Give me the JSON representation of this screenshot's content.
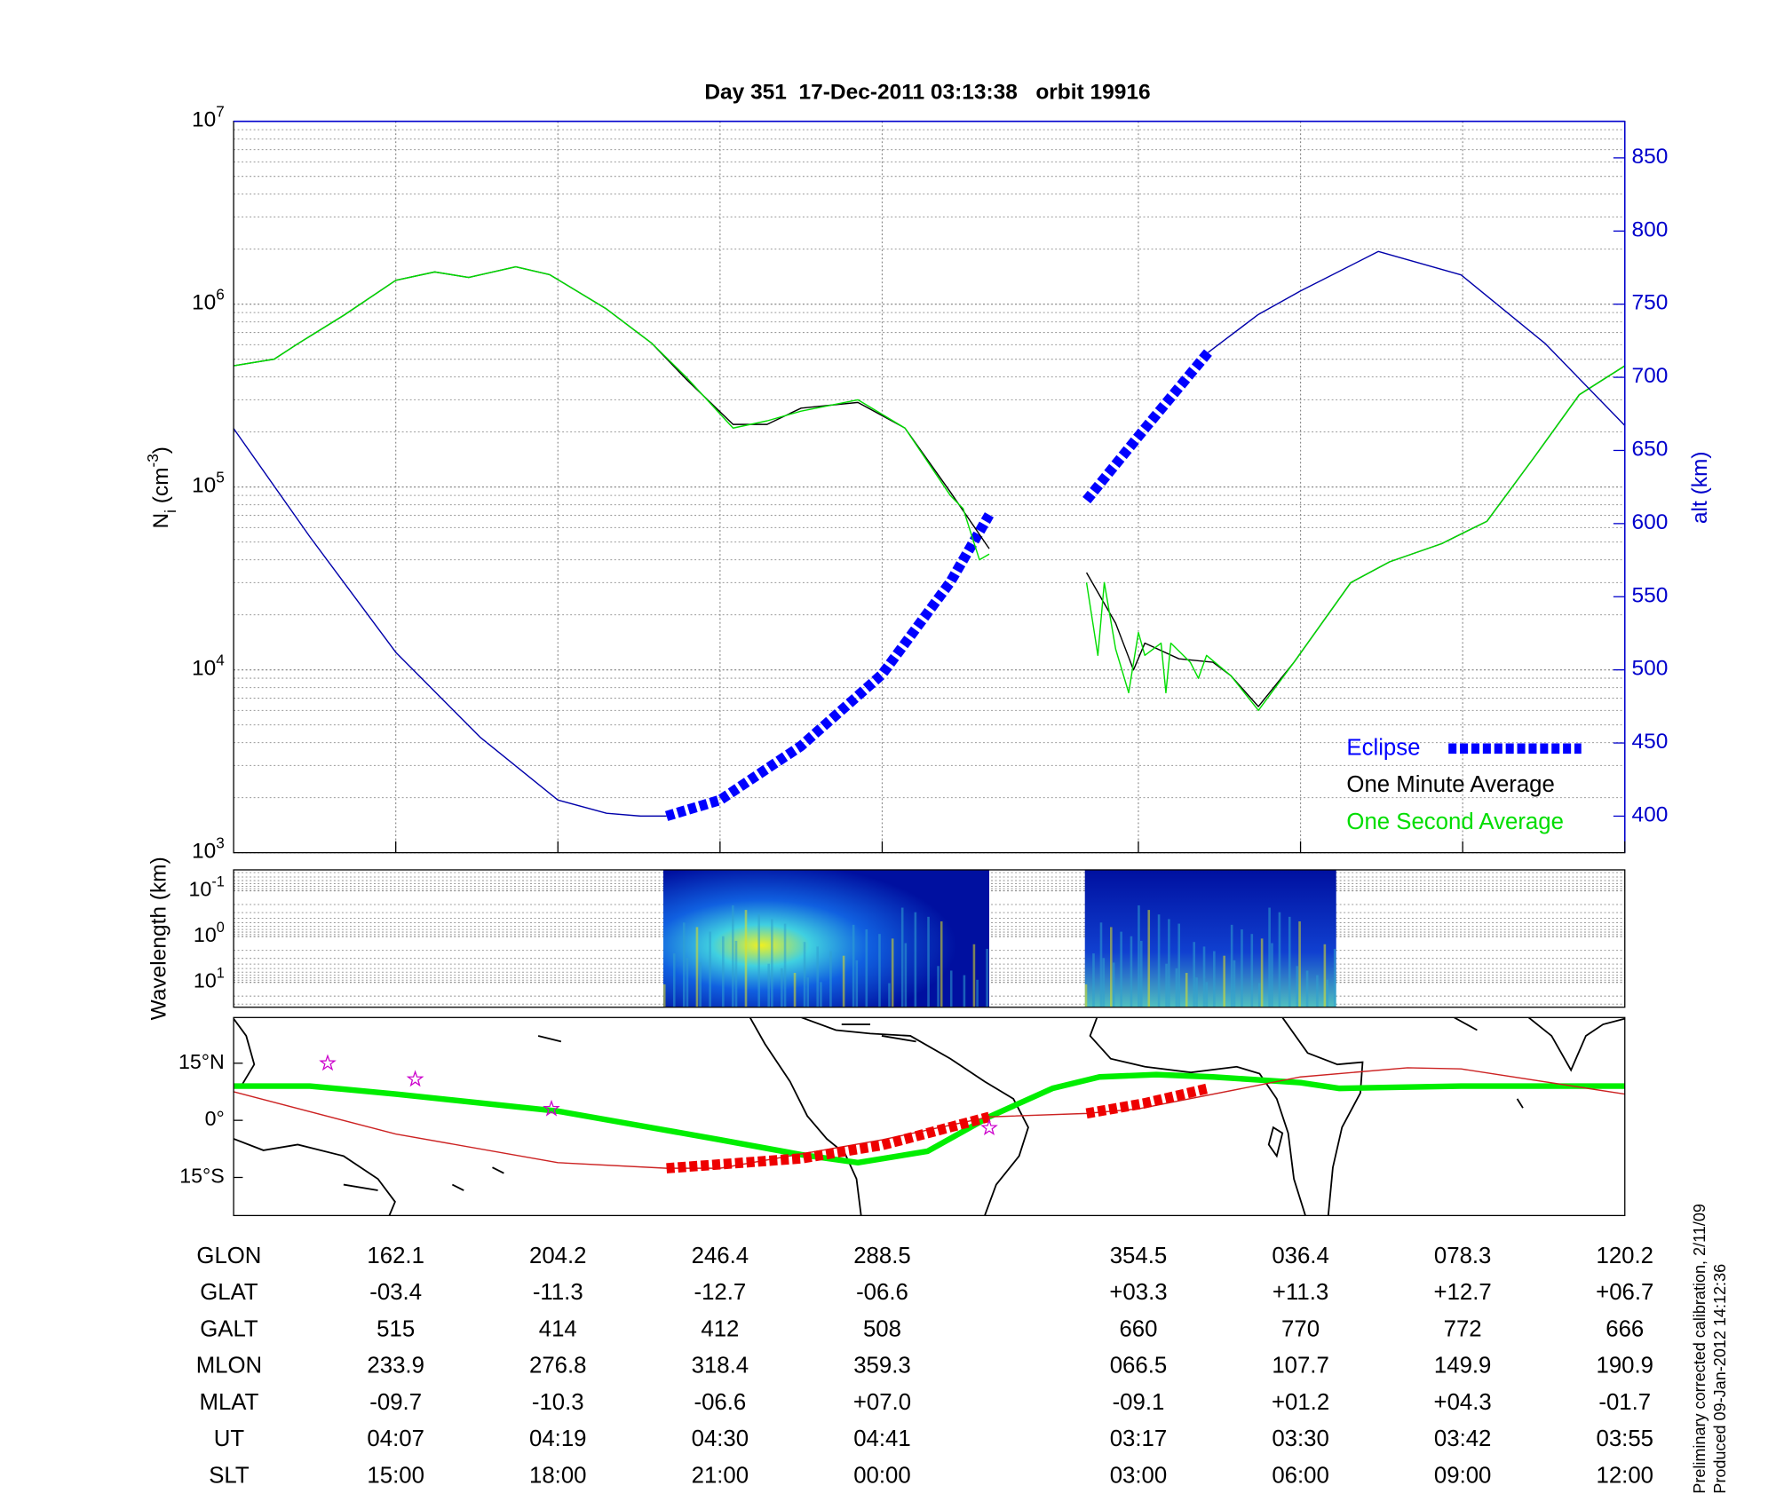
{
  "chart_data": [
    {
      "type": "line",
      "title": "Day 351  17-Dec-2011 03:13:38   orbit 19916",
      "y_label": "N_{i} (cm^{-3})",
      "y2_label": "alt (km)",
      "y_scale": "log",
      "ylim": [
        1000,
        10000000
      ],
      "yticks": [
        {
          "value": 1000,
          "label": "10^{3}"
        },
        {
          "value": 10000,
          "label": "10^{4}"
        },
        {
          "value": 100000,
          "label": "10^{5}"
        },
        {
          "value": 1000000,
          "label": "10^{6}"
        },
        {
          "value": 10000000,
          "label": "10^{7}"
        }
      ],
      "y2lim": [
        375,
        875
      ],
      "y2ticks": [
        400,
        450,
        500,
        550,
        600,
        650,
        700,
        750,
        800,
        850
      ],
      "xlim": [
        0,
        8.58
      ],
      "xticks": [
        1,
        2,
        3,
        4,
        5.58,
        6.58,
        7.58,
        8.58
      ],
      "grid": true,
      "legend": "lower right",
      "series": [
        {
          "name": "Eclipse",
          "color": "#0000ff",
          "axis": "y2",
          "style": "dashed",
          "x": [
            2.67,
            3.0,
            3.5,
            4.0,
            4.42,
            4.66,
            5.0,
            5.26,
            5.62,
            6.01
          ],
          "values": [
            400,
            411,
            448,
            497,
            560,
            606,
            null,
            616,
            665,
            717
          ]
        },
        {
          "name": "One Minute Average",
          "color": "#000000",
          "style": "thin",
          "x": [
            0,
            0.25,
            0.4,
            0.68,
            1.0,
            1.24,
            1.45,
            1.74,
            1.95,
            2.3,
            2.58,
            2.79,
            3.08,
            3.29,
            3.5,
            3.85,
            4.14,
            4.42,
            4.66,
            5.0,
            5.26,
            5.44,
            5.55,
            5.62,
            5.83,
            6.04,
            6.15,
            6.32,
            6.54,
            6.89,
            7.13,
            7.45,
            7.73,
            8.02,
            8.3,
            8.58
          ],
          "values": [
            460000,
            500000,
            610000,
            870000,
            1350000,
            1500000,
            1400000,
            1600000,
            1450000,
            940000,
            610000,
            390000,
            220000,
            220000,
            270000,
            290000,
            210000,
            94000,
            46000,
            null,
            34000,
            18000,
            10000,
            14000,
            11500,
            11000,
            9300,
            6300,
            11000,
            30000,
            39000,
            49000,
            65000,
            145000,
            320000,
            460000
          ]
        },
        {
          "name": "One Second Average",
          "color": "#00dd00",
          "style": "thin",
          "x": [
            0,
            0.25,
            0.4,
            0.68,
            1.0,
            1.24,
            1.45,
            1.74,
            1.95,
            2.3,
            2.58,
            2.79,
            3.08,
            3.29,
            3.5,
            3.85,
            4.14,
            4.42,
            4.5,
            4.55,
            4.6,
            4.66,
            5.0,
            5.26,
            5.33,
            5.37,
            5.44,
            5.52,
            5.58,
            5.62,
            5.72,
            5.75,
            5.78,
            5.9,
            5.95,
            6.0,
            6.15,
            6.32,
            6.54,
            6.89,
            7.13,
            7.45,
            7.73,
            8.02,
            8.3,
            8.58
          ],
          "values": [
            460000,
            500000,
            610000,
            870000,
            1350000,
            1500000,
            1400000,
            1600000,
            1450000,
            940000,
            610000,
            400000,
            210000,
            230000,
            260000,
            300000,
            210000,
            90000,
            76000,
            55000,
            40000,
            43000,
            null,
            30000,
            12000,
            30000,
            13000,
            7500,
            16000,
            12000,
            14000,
            7500,
            14000,
            11000,
            9000,
            12000,
            9300,
            6000,
            11000,
            30000,
            39000,
            49000,
            65000,
            145000,
            320000,
            460000
          ]
        },
        {
          "color": "#0000aa",
          "axis": "y2",
          "style": "thin",
          "x": [
            0,
            0.47,
            1.0,
            1.52,
            2.0,
            2.3,
            2.51,
            2.67,
            4.3,
            6.01,
            6.32,
            6.58,
            7.06,
            7.57,
            8.09,
            8.58
          ],
          "values": [
            665,
            591,
            512,
            454,
            411,
            402,
            400,
            400,
            null,
            717,
            743,
            759,
            786,
            770,
            723,
            667
          ]
        }
      ]
    },
    {
      "type": "spectrogram",
      "y_label": "Wavelength (km)",
      "y_scale": "log",
      "ylim": [
        35,
        0.035
      ],
      "yticks": [
        {
          "value": 0.1,
          "label": "10^{-1}"
        },
        {
          "value": 1,
          "label": "10^{0}"
        },
        {
          "value": 10,
          "label": "10^{1}"
        }
      ],
      "xlim": [
        0,
        8.58
      ],
      "grid": true,
      "segments_x": [
        [
          2.65,
          4.66
        ],
        [
          5.25,
          6.8
        ]
      ]
    },
    {
      "type": "line",
      "ylim": [
        -25,
        27
      ],
      "yticks": [
        {
          "value": 15,
          "label": "15°N"
        },
        {
          "value": 0,
          "label": "0°"
        },
        {
          "value": -15,
          "label": "15°S"
        }
      ],
      "xlim": [
        0,
        8.58
      ],
      "series": [
        {
          "color": "#00ee00",
          "style": "thick",
          "x": [
            0,
            0.47,
            1.0,
            2.0,
            3.0,
            3.5,
            3.85,
            4.28,
            4.66,
            5.05,
            5.34,
            5.69,
            6.04,
            6.58,
            6.82,
            7.57,
            8.58
          ],
          "values": [
            9,
            9,
            6.9,
            2.4,
            -5.1,
            -9,
            -11.1,
            -8.1,
            0.9,
            8.4,
            11.4,
            12,
            11.4,
            9.9,
            8.4,
            9,
            9
          ]
        },
        {
          "color": "#cc2222",
          "style": "thin",
          "x": [
            0,
            1.0,
            2.0,
            2.67,
            3.0,
            4.0,
            4.66,
            5.26,
            5.58,
            6.58,
            7.24,
            7.57,
            8.58
          ],
          "values": [
            7.5,
            -3.6,
            -11.1,
            -12.6,
            -12.6,
            -5.1,
            0.9,
            1.8,
            3,
            11.4,
            13.8,
            13.5,
            6.9
          ]
        },
        {
          "color": "#ee0000",
          "style": "dashed",
          "x": [
            2.67,
            3.5,
            4.0,
            4.66,
            5.0,
            5.26,
            5.62,
            6.01
          ],
          "values": [
            -12.6,
            -10,
            -6.5,
            0.9,
            null,
            1.8,
            4.5,
            8.4
          ]
        },
        {
          "color": "#cc00cc",
          "style": "star",
          "x": [
            0.58,
            1.12,
            1.96,
            4.66
          ],
          "values": [
            15,
            10.8,
            3,
            -2
          ]
        }
      ]
    }
  ],
  "table": {
    "rows": [
      [
        "GLON",
        "162.1",
        "204.2",
        "246.4",
        "288.5",
        "354.5",
        "036.4",
        "078.3",
        "120.2"
      ],
      [
        "GLAT",
        "-03.4",
        "-11.3",
        "-12.7",
        "-06.6",
        "+03.3",
        "+11.3",
        "+12.7",
        "+06.7"
      ],
      [
        "GALT",
        "515",
        "414",
        "412",
        "508",
        "660",
        "770",
        "772",
        "666"
      ],
      [
        "MLON",
        "233.9",
        "276.8",
        "318.4",
        "359.3",
        "066.5",
        "107.7",
        "149.9",
        "190.9"
      ],
      [
        "MLAT",
        "-09.7",
        "-10.3",
        "-06.6",
        "+07.0",
        "-09.1",
        "+01.2",
        "+04.3",
        "-01.7"
      ],
      [
        "UT",
        "04:07",
        "04:19",
        "04:30",
        "04:41",
        "03:17",
        "03:30",
        "03:42",
        "03:55"
      ],
      [
        "SLT",
        "15:00",
        "18:00",
        "21:00",
        "00:00",
        "03:00",
        "06:00",
        "09:00",
        "12:00"
      ]
    ]
  },
  "footer": [
    "Preliminary corrected calibration, 2/11/09",
    "Produced 09-Jan-2012 14:12:36"
  ]
}
